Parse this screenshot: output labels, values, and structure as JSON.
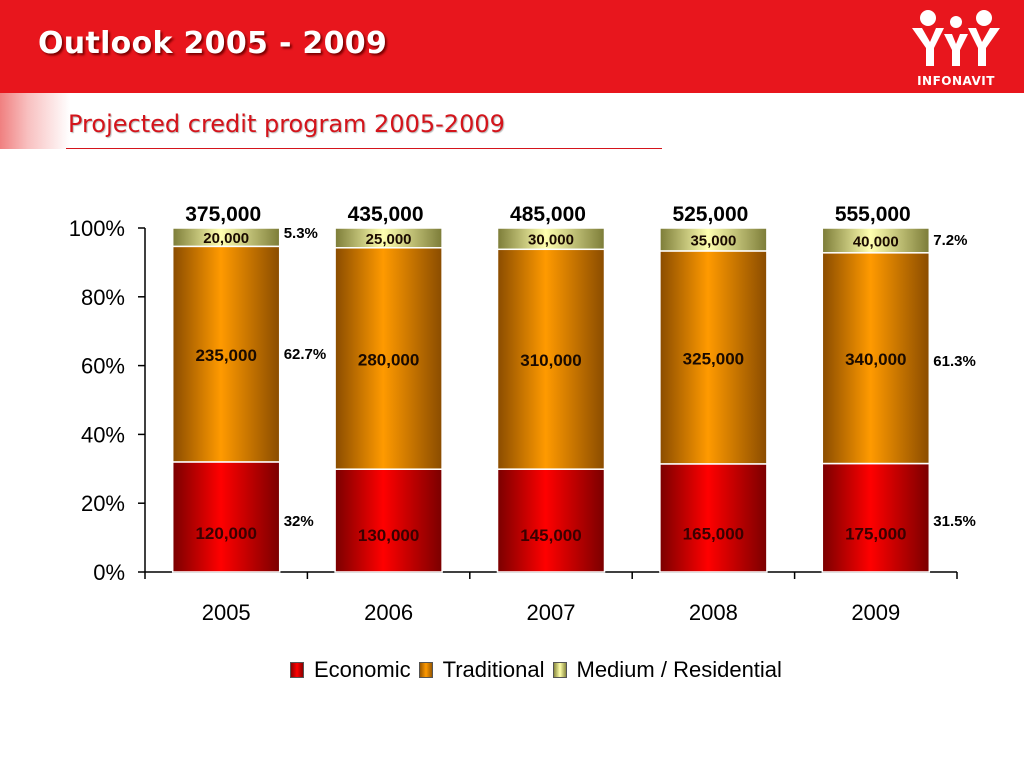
{
  "header": {
    "title": "Outlook 2005 - 2009"
  },
  "logo": {
    "text": "INFONAVIT",
    "icon": "infonavit-family-logo"
  },
  "subtitle": "Projected credit program 2005-2009",
  "colors": {
    "header_red": "#e8161d",
    "subtitle_red": "#d4141b",
    "economic": "#e00000",
    "traditional": "#ff9a00",
    "medium": "#f5f5a0"
  },
  "chart_data": {
    "type": "bar",
    "stacked": "percent",
    "categories": [
      "2005",
      "2006",
      "2007",
      "2008",
      "2009"
    ],
    "totals": [
      "375,000",
      "435,000",
      "485,000",
      "525,000",
      "555,000"
    ],
    "series": [
      {
        "name": "Economic",
        "values": [
          120000,
          130000,
          145000,
          165000,
          175000
        ],
        "labels": [
          "120,000",
          "130,000",
          "145,000",
          "165,000",
          "175,000"
        ]
      },
      {
        "name": "Traditional",
        "values": [
          235000,
          280000,
          310000,
          325000,
          340000
        ],
        "labels": [
          "235,000",
          "280,000",
          "310,000",
          "325,000",
          "340,000"
        ]
      },
      {
        "name": "Medium / Residential",
        "values": [
          20000,
          25000,
          30000,
          35000,
          40000
        ],
        "labels": [
          "20,000",
          "25,000",
          "30,000",
          "35,000",
          "40,000"
        ]
      }
    ],
    "share_labels": {
      "2005": {
        "Economic": "32%",
        "Traditional": "62.7%",
        "Medium / Residential": "5.3%"
      },
      "2009": {
        "Economic": "31.5%",
        "Traditional": "61.3%",
        "Medium / Residential": "7.2%"
      }
    },
    "yticks": [
      "0%",
      "20%",
      "40%",
      "60%",
      "80%",
      "100%"
    ],
    "ylim": [
      0,
      100
    ],
    "legend_position": "bottom",
    "grid": false
  }
}
